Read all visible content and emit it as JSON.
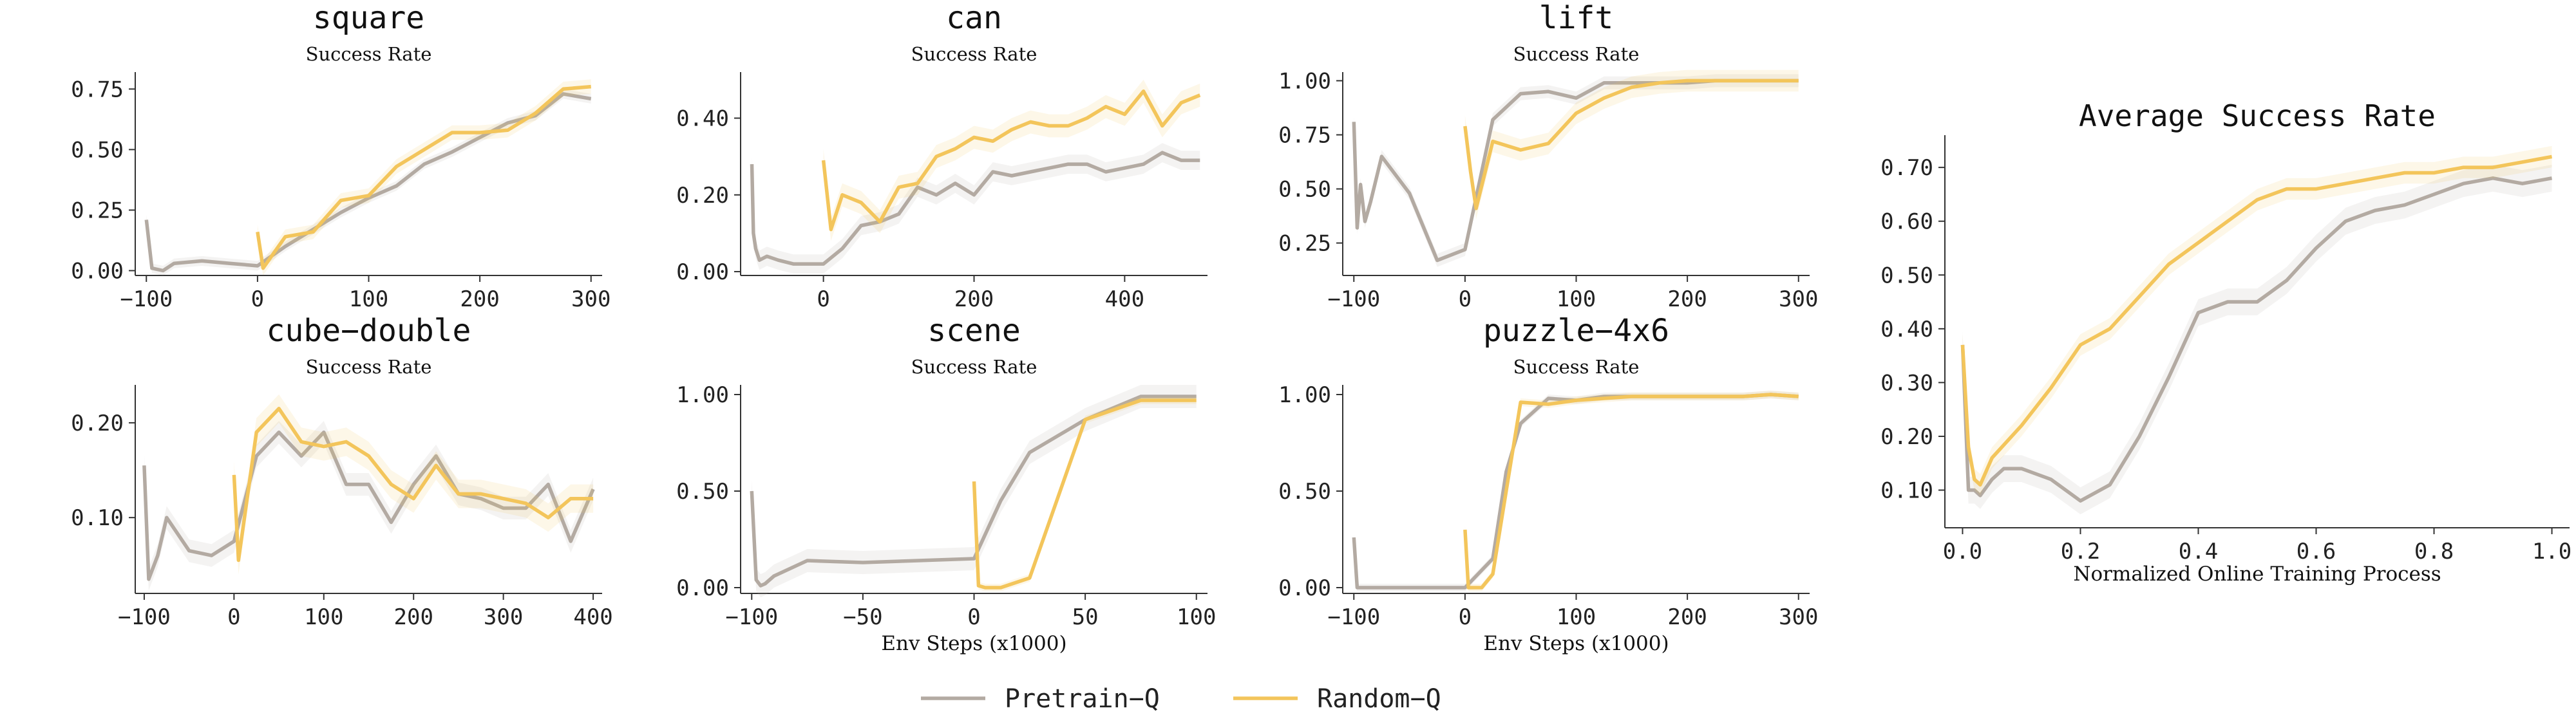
{
  "colors": {
    "pretrain": "#b3aaa2",
    "random": "#f3c55b",
    "axis": "#333333"
  },
  "legend": {
    "items": [
      {
        "label": "Pretrain−Q",
        "series": "pretrain"
      },
      {
        "label": "Random−Q",
        "series": "random"
      }
    ]
  },
  "chart_data": [
    {
      "type": "line",
      "title": "square",
      "subtitle": "Success Rate",
      "xlabel": "",
      "xlim": [
        -110,
        310
      ],
      "ylim": [
        -0.02,
        0.82
      ],
      "xticks": [
        -100,
        0,
        100,
        200,
        300
      ],
      "xtick_labels": [
        "−100",
        "0",
        "100",
        "200",
        "300"
      ],
      "yticks": [
        0,
        0.25,
        0.5,
        0.75
      ],
      "ytick_labels": [
        "0.00",
        "0.25",
        "0.50",
        "0.75"
      ],
      "series": [
        {
          "key": "pretrain",
          "x": [
            -100,
            -95,
            -85,
            -75,
            -50,
            -25,
            0,
            25,
            50,
            75,
            100,
            125,
            150,
            175,
            200,
            225,
            250,
            275,
            300
          ],
          "y": [
            0.21,
            0.01,
            0.0,
            0.03,
            0.04,
            0.03,
            0.02,
            0.1,
            0.17,
            0.24,
            0.3,
            0.35,
            0.44,
            0.49,
            0.55,
            0.61,
            0.64,
            0.73,
            0.71
          ],
          "band": 0.02
        },
        {
          "key": "random",
          "x": [
            0,
            5,
            25,
            50,
            75,
            100,
            125,
            150,
            175,
            200,
            225,
            250,
            275,
            300
          ],
          "y": [
            0.16,
            0.01,
            0.14,
            0.16,
            0.29,
            0.31,
            0.43,
            0.5,
            0.57,
            0.57,
            0.58,
            0.65,
            0.75,
            0.76
          ],
          "band": 0.03
        }
      ]
    },
    {
      "type": "line",
      "title": "can",
      "subtitle": "Success Rate",
      "xlabel": "",
      "xlim": [
        -110,
        510
      ],
      "ylim": [
        -0.01,
        0.52
      ],
      "xticks": [
        0,
        200,
        400
      ],
      "xtick_labels": [
        "0",
        "200",
        "400"
      ],
      "yticks": [
        0,
        0.2,
        0.4
      ],
      "ytick_labels": [
        "0.00",
        "0.20",
        "0.40"
      ],
      "series": [
        {
          "key": "pretrain",
          "x": [
            -95,
            -93,
            -90,
            -85,
            -75,
            -60,
            -40,
            -20,
            0,
            25,
            50,
            75,
            100,
            125,
            150,
            175,
            200,
            225,
            250,
            275,
            300,
            325,
            350,
            375,
            400,
            425,
            450,
            475,
            500
          ],
          "y": [
            0.28,
            0.1,
            0.06,
            0.03,
            0.04,
            0.03,
            0.02,
            0.02,
            0.02,
            0.06,
            0.12,
            0.13,
            0.15,
            0.22,
            0.2,
            0.23,
            0.2,
            0.26,
            0.25,
            0.26,
            0.27,
            0.28,
            0.28,
            0.26,
            0.27,
            0.28,
            0.31,
            0.29,
            0.29
          ],
          "band": 0.025
        },
        {
          "key": "random",
          "x": [
            0,
            10,
            25,
            50,
            75,
            100,
            125,
            150,
            175,
            200,
            225,
            250,
            275,
            300,
            325,
            350,
            375,
            400,
            425,
            450,
            475,
            500
          ],
          "y": [
            0.29,
            0.11,
            0.2,
            0.18,
            0.13,
            0.22,
            0.23,
            0.3,
            0.32,
            0.35,
            0.34,
            0.37,
            0.39,
            0.38,
            0.38,
            0.4,
            0.43,
            0.41,
            0.47,
            0.38,
            0.44,
            0.46
          ],
          "band": 0.03
        }
      ]
    },
    {
      "type": "line",
      "title": "lift",
      "subtitle": "Success Rate",
      "xlabel": "",
      "xlim": [
        -110,
        310
      ],
      "ylim": [
        0.1,
        1.04
      ],
      "xticks": [
        -100,
        0,
        100,
        200,
        300
      ],
      "xtick_labels": [
        "−100",
        "0",
        "100",
        "200",
        "300"
      ],
      "yticks": [
        0.25,
        0.5,
        0.75,
        1.0
      ],
      "ytick_labels": [
        "0.25",
        "0.50",
        "0.75",
        "1.00"
      ],
      "series": [
        {
          "key": "pretrain",
          "x": [
            -100,
            -97,
            -94,
            -90,
            -85,
            -75,
            -50,
            -25,
            0,
            25,
            50,
            75,
            100,
            125,
            150,
            175,
            200,
            225,
            250,
            275,
            300
          ],
          "y": [
            0.81,
            0.32,
            0.52,
            0.35,
            0.44,
            0.65,
            0.48,
            0.17,
            0.22,
            0.82,
            0.94,
            0.95,
            0.92,
            0.99,
            0.99,
            0.99,
            0.99,
            1.0,
            1.0,
            1.0,
            1.0
          ],
          "band": 0.03
        },
        {
          "key": "random",
          "x": [
            0,
            5,
            10,
            25,
            50,
            75,
            100,
            125,
            150,
            175,
            200,
            225,
            250,
            275,
            300
          ],
          "y": [
            0.79,
            0.58,
            0.41,
            0.72,
            0.68,
            0.71,
            0.85,
            0.92,
            0.97,
            0.99,
            1.0,
            1.0,
            1.0,
            1.0,
            1.0
          ],
          "band": 0.05
        }
      ]
    },
    {
      "type": "line",
      "title": "cube−double",
      "subtitle": "Success Rate",
      "xlabel": "",
      "xlim": [
        -110,
        410
      ],
      "ylim": [
        0.02,
        0.24
      ],
      "xticks": [
        -100,
        0,
        100,
        200,
        300,
        400
      ],
      "xtick_labels": [
        "−100",
        "0",
        "100",
        "200",
        "300",
        "400"
      ],
      "yticks": [
        0.1,
        0.2
      ],
      "ytick_labels": [
        "0.10",
        "0.20"
      ],
      "series": [
        {
          "key": "pretrain",
          "x": [
            -100,
            -95,
            -85,
            -75,
            -50,
            -25,
            0,
            25,
            50,
            75,
            100,
            125,
            150,
            175,
            200,
            225,
            250,
            275,
            300,
            325,
            350,
            375,
            400
          ],
          "y": [
            0.155,
            0.035,
            0.06,
            0.1,
            0.065,
            0.06,
            0.075,
            0.165,
            0.19,
            0.165,
            0.19,
            0.135,
            0.135,
            0.095,
            0.135,
            0.165,
            0.125,
            0.12,
            0.11,
            0.11,
            0.135,
            0.075,
            0.13
          ],
          "band": 0.012
        },
        {
          "key": "random",
          "x": [
            0,
            5,
            25,
            50,
            75,
            100,
            125,
            150,
            175,
            200,
            225,
            250,
            275,
            300,
            325,
            350,
            375,
            400
          ],
          "y": [
            0.145,
            0.055,
            0.19,
            0.215,
            0.18,
            0.175,
            0.18,
            0.165,
            0.135,
            0.12,
            0.155,
            0.125,
            0.125,
            0.12,
            0.115,
            0.1,
            0.12,
            0.12
          ],
          "band": 0.015
        }
      ]
    },
    {
      "type": "line",
      "title": "scene",
      "subtitle": "Success Rate",
      "xlabel": "Env Steps (x1000)",
      "xlim": [
        -105,
        105
      ],
      "ylim": [
        -0.03,
        1.05
      ],
      "xticks": [
        -100,
        -50,
        0,
        50,
        100
      ],
      "xtick_labels": [
        "−100",
        "−50",
        "0",
        "50",
        "100"
      ],
      "yticks": [
        0,
        0.5,
        1.0
      ],
      "ytick_labels": [
        "0.00",
        "0.50",
        "1.00"
      ],
      "series": [
        {
          "key": "pretrain",
          "x": [
            -100,
            -98,
            -96,
            -94,
            -90,
            -75,
            -50,
            -25,
            0,
            12,
            25,
            50,
            75,
            100
          ],
          "y": [
            0.5,
            0.04,
            0.01,
            0.02,
            0.06,
            0.14,
            0.13,
            0.14,
            0.15,
            0.45,
            0.7,
            0.87,
            0.99,
            0.99
          ],
          "band": 0.06
        },
        {
          "key": "random",
          "x": [
            0,
            2,
            5,
            12,
            25,
            50,
            75,
            100
          ],
          "y": [
            0.55,
            0.01,
            0.0,
            0.0,
            0.05,
            0.87,
            0.97,
            0.97
          ],
          "band": 0.02
        }
      ]
    },
    {
      "type": "line",
      "title": "puzzle−4x6",
      "subtitle": "Success Rate",
      "xlabel": "Env Steps (x1000)",
      "xlim": [
        -110,
        310
      ],
      "ylim": [
        -0.03,
        1.05
      ],
      "xticks": [
        -100,
        0,
        100,
        200,
        300
      ],
      "xtick_labels": [
        "−100",
        "0",
        "100",
        "200",
        "300"
      ],
      "yticks": [
        0,
        0.5,
        1.0
      ],
      "ytick_labels": [
        "0.00",
        "0.50",
        "1.00"
      ],
      "series": [
        {
          "key": "pretrain",
          "x": [
            -100,
            -97,
            -75,
            -50,
            -25,
            0,
            25,
            37,
            50,
            75,
            100,
            125,
            150,
            175,
            200,
            225,
            250,
            275,
            300
          ],
          "y": [
            0.26,
            0.0,
            0.0,
            0.0,
            0.0,
            0.0,
            0.15,
            0.6,
            0.85,
            0.98,
            0.97,
            0.99,
            0.99,
            0.99,
            0.99,
            0.99,
            0.99,
            1.0,
            0.99
          ],
          "band": 0.02
        },
        {
          "key": "random",
          "x": [
            0,
            3,
            15,
            25,
            37,
            50,
            75,
            100,
            125,
            150,
            175,
            200,
            225,
            250,
            275,
            300
          ],
          "y": [
            0.3,
            0.0,
            0.0,
            0.07,
            0.5,
            0.96,
            0.95,
            0.97,
            0.98,
            0.99,
            0.99,
            0.99,
            0.99,
            0.99,
            1.0,
            0.99
          ],
          "band": 0.02
        }
      ]
    },
    {
      "type": "line",
      "title": "Average Success Rate",
      "subtitle": "",
      "xlabel": "Normalized Online Training Process",
      "xlim": [
        -0.03,
        1.03
      ],
      "ylim": [
        0.03,
        0.76
      ],
      "xticks": [
        0,
        0.2,
        0.4,
        0.6,
        0.8,
        1.0
      ],
      "xtick_labels": [
        "0.0",
        "0.2",
        "0.4",
        "0.6",
        "0.8",
        "1.0"
      ],
      "yticks": [
        0.1,
        0.2,
        0.3,
        0.4,
        0.5,
        0.6,
        0.7
      ],
      "ytick_labels": [
        "0.10",
        "0.20",
        "0.30",
        "0.40",
        "0.50",
        "0.60",
        "0.70"
      ],
      "series": [
        {
          "key": "pretrain",
          "x": [
            0,
            0.01,
            0.02,
            0.03,
            0.05,
            0.07,
            0.1,
            0.15,
            0.2,
            0.25,
            0.3,
            0.35,
            0.4,
            0.45,
            0.5,
            0.55,
            0.6,
            0.65,
            0.7,
            0.75,
            0.8,
            0.85,
            0.9,
            0.95,
            1.0
          ],
          "y": [
            0.37,
            0.1,
            0.1,
            0.09,
            0.12,
            0.14,
            0.14,
            0.12,
            0.08,
            0.11,
            0.2,
            0.31,
            0.43,
            0.45,
            0.45,
            0.49,
            0.55,
            0.6,
            0.62,
            0.63,
            0.65,
            0.67,
            0.68,
            0.67,
            0.68
          ],
          "band": 0.025
        },
        {
          "key": "random",
          "x": [
            0,
            0.01,
            0.02,
            0.03,
            0.05,
            0.1,
            0.15,
            0.2,
            0.25,
            0.3,
            0.35,
            0.4,
            0.45,
            0.5,
            0.55,
            0.6,
            0.65,
            0.7,
            0.75,
            0.8,
            0.85,
            0.9,
            0.95,
            1.0
          ],
          "y": [
            0.37,
            0.18,
            0.12,
            0.11,
            0.16,
            0.22,
            0.29,
            0.37,
            0.4,
            0.46,
            0.52,
            0.56,
            0.6,
            0.64,
            0.66,
            0.66,
            0.67,
            0.68,
            0.69,
            0.69,
            0.7,
            0.7,
            0.71,
            0.72
          ],
          "band": 0.02
        }
      ]
    }
  ]
}
